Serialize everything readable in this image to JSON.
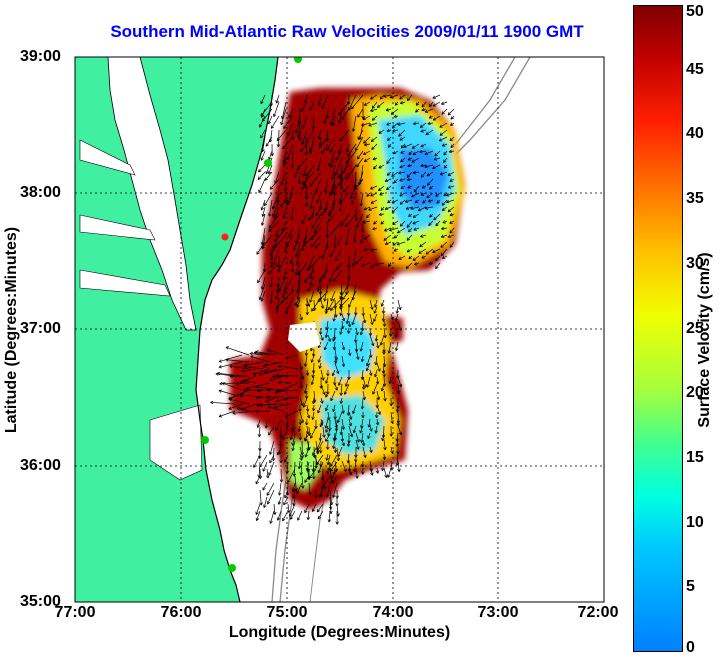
{
  "title": "Southern Mid-Atlantic Raw Velocities 2009/01/11 1900 GMT",
  "chart_data": {
    "type": "map",
    "xlabel": "Longitude (Degrees:Minutes)",
    "ylabel": "Latitude (Degrees:Minutes)",
    "x_ticks": [
      "77:00",
      "76:00",
      "75:00",
      "74:00",
      "73:00",
      "72:00"
    ],
    "y_ticks": [
      "39:00",
      "38:00",
      "37:00",
      "36:00",
      "35:00"
    ],
    "xlim": [
      -77,
      -72
    ],
    "ylim": [
      35,
      39
    ],
    "grid": "dotted",
    "colorbar": {
      "label": "Surface Velocity (cm/s)",
      "ticks": [
        0,
        5,
        10,
        15,
        20,
        25,
        30,
        35,
        40,
        45,
        50
      ],
      "range": [
        0,
        50
      ],
      "colormap": "jet"
    }
  },
  "colors": {
    "land": "#40f0a0",
    "coast": "#000000",
    "title": "#0000ff",
    "bathymetry": "#8a8a8a",
    "station": "#00cc00",
    "station_alert": "#ff2020"
  }
}
